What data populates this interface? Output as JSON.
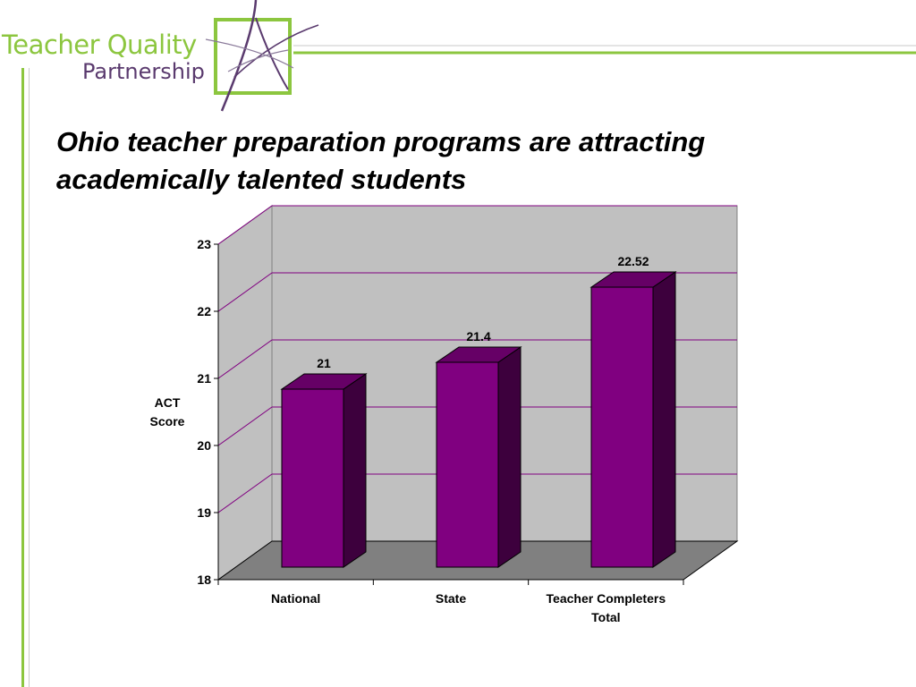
{
  "logo": {
    "line1": "Teacher Quality",
    "line2": "Partnership",
    "colors": {
      "green": "#8cc63f",
      "purple": "#5a3a6e"
    }
  },
  "slide": {
    "title_line1": "Ohio teacher preparation programs are attracting",
    "title_line2": "academically talented students"
  },
  "chart_data": {
    "type": "bar",
    "title": "",
    "categories": [
      [
        "National"
      ],
      [
        "State"
      ],
      [
        "Teacher Completers",
        "Total"
      ]
    ],
    "values": [
      21,
      21.4,
      22.52
    ],
    "data_labels": [
      "21",
      "21.4",
      "22.52"
    ],
    "ylabel": [
      "ACT",
      "Score"
    ],
    "ylim": [
      18,
      23
    ],
    "yticks": [
      18,
      19,
      20,
      21,
      22,
      23
    ],
    "grid": true,
    "style": "3d",
    "colors": {
      "bar_front": "#800080",
      "bar_side": "#3d003d",
      "bar_top": "#660066",
      "wall": "#c0c0c0",
      "floor": "#808080",
      "gridline": "#800080"
    }
  }
}
